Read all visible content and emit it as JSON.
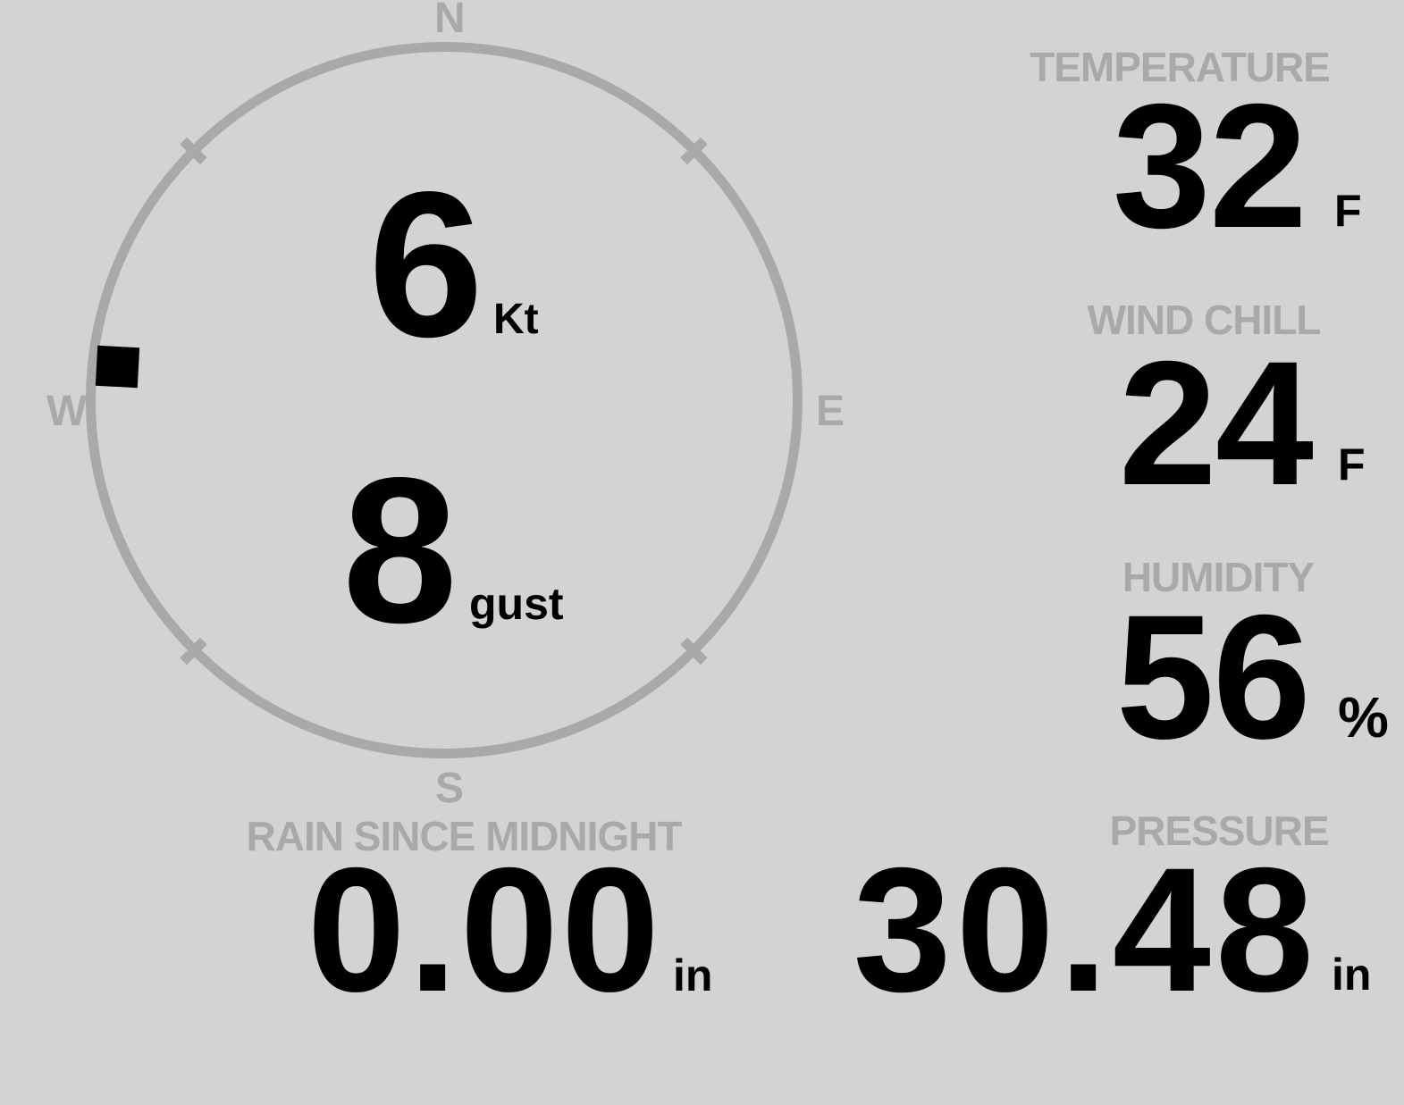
{
  "theme": {
    "background": "#d3d3d3",
    "muted_gray": "#a9a9a9",
    "ink": "#000000"
  },
  "compass": {
    "cardinals": {
      "north": "N",
      "east": "E",
      "south": "S",
      "west": "W"
    },
    "wind_speed": {
      "value": "6",
      "unit": "Kt"
    },
    "wind_gust": {
      "value": "8",
      "unit": "gust"
    },
    "direction_marker": "wind from west-northwest"
  },
  "metrics": {
    "temperature": {
      "label": "TEMPERATURE",
      "value": "32",
      "unit": "F"
    },
    "wind_chill": {
      "label": "WIND CHILL",
      "value": "24",
      "unit": "F"
    },
    "humidity": {
      "label": "HUMIDITY",
      "value": "56",
      "unit": "%"
    },
    "rain": {
      "label": "RAIN SINCE MIDNIGHT",
      "value": "0.00",
      "unit": "in"
    },
    "pressure": {
      "label": "PRESSURE",
      "value": "30.48",
      "unit": "in"
    }
  }
}
